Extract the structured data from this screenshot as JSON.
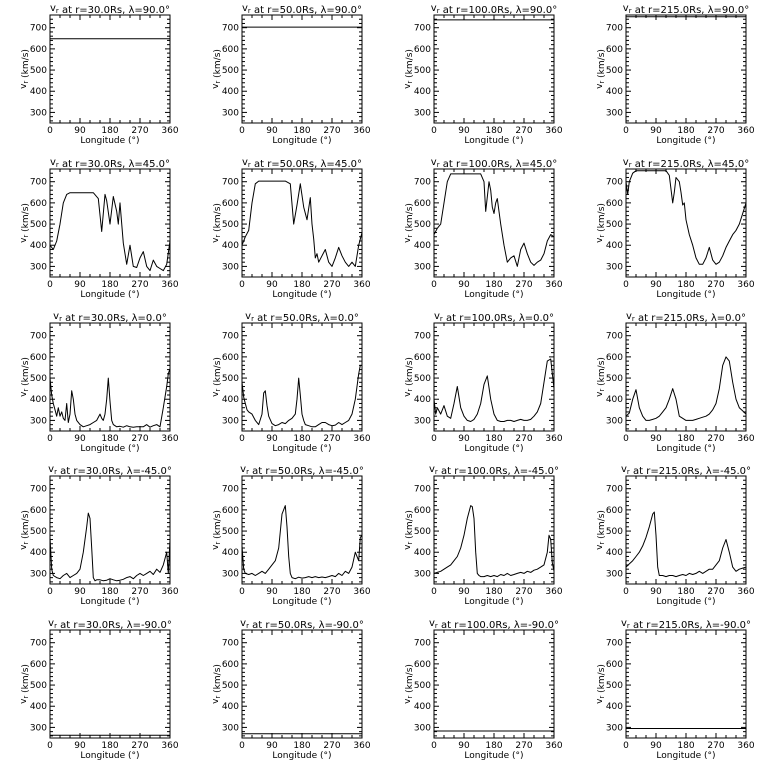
{
  "labels": {
    "xlabel": "Longitude  (°)",
    "ylabel": "v_r  (km/s)"
  },
  "axes": {
    "xlim": [
      0,
      360
    ],
    "ylim": [
      250,
      760
    ],
    "xticks": [
      0,
      90,
      180,
      270,
      360
    ],
    "yticks": [
      300,
      400,
      500,
      600,
      700
    ]
  },
  "chart_data": [
    {
      "type": "line",
      "title": "v_r at r=30.0Rs,  λ=90.0°",
      "x": [
        0,
        360
      ],
      "y": [
        648,
        648
      ]
    },
    {
      "type": "line",
      "title": "v_r at r=50.0Rs,  λ=90.0°",
      "x": [
        0,
        360
      ],
      "y": [
        703,
        703
      ]
    },
    {
      "type": "line",
      "title": "v_r at r=100.0Rs,  λ=90.0°",
      "x": [
        0,
        360
      ],
      "y": [
        737,
        737
      ]
    },
    {
      "type": "line",
      "title": "v_r at r=215.0Rs,  λ=90.0°",
      "x": [
        0,
        360
      ],
      "y": [
        752,
        752
      ]
    },
    {
      "type": "line",
      "title": "v_r at r=30.0Rs,  λ=45.0°",
      "x": [
        0,
        10,
        20,
        30,
        40,
        50,
        60,
        80,
        100,
        130,
        145,
        155,
        165,
        170,
        180,
        190,
        200,
        205,
        210,
        220,
        230,
        240,
        250,
        260,
        270,
        280,
        290,
        300,
        310,
        320,
        330,
        340,
        350,
        360
      ],
      "y": [
        400,
        380,
        420,
        500,
        600,
        640,
        648,
        648,
        648,
        648,
        620,
        465,
        640,
        610,
        500,
        630,
        560,
        500,
        600,
        410,
        310,
        400,
        300,
        295,
        340,
        370,
        300,
        280,
        330,
        300,
        290,
        280,
        310,
        420
      ]
    },
    {
      "type": "line",
      "title": "v_r at r=50.0Rs,  λ=45.0°",
      "x": [
        0,
        10,
        20,
        30,
        40,
        50,
        60,
        80,
        100,
        130,
        145,
        155,
        165,
        175,
        185,
        195,
        205,
        210,
        215,
        220,
        225,
        230,
        240,
        250,
        260,
        270,
        280,
        290,
        300,
        310,
        320,
        330,
        340,
        350,
        360
      ],
      "y": [
        400,
        440,
        470,
        600,
        690,
        703,
        703,
        703,
        703,
        703,
        690,
        500,
        590,
        690,
        580,
        520,
        625,
        500,
        430,
        340,
        360,
        320,
        350,
        380,
        320,
        300,
        340,
        390,
        350,
        320,
        300,
        320,
        300,
        400,
        460
      ]
    },
    {
      "type": "line",
      "title": "v_r at r=100.0Rs,  λ=45.0°",
      "x": [
        0,
        10,
        20,
        30,
        40,
        50,
        60,
        80,
        100,
        120,
        140,
        150,
        155,
        165,
        170,
        175,
        180,
        185,
        190,
        195,
        200,
        210,
        220,
        230,
        240,
        250,
        260,
        270,
        280,
        290,
        300,
        310,
        320,
        330,
        340,
        350,
        360
      ],
      "y": [
        450,
        480,
        500,
        600,
        700,
        737,
        737,
        737,
        737,
        737,
        737,
        700,
        560,
        700,
        660,
        580,
        550,
        600,
        620,
        560,
        500,
        400,
        320,
        340,
        350,
        300,
        380,
        410,
        360,
        320,
        305,
        320,
        330,
        360,
        420,
        450,
        440
      ]
    },
    {
      "type": "line",
      "title": "v_r at r=215.0Rs,  λ=45.0°",
      "x": [
        0,
        5,
        10,
        20,
        30,
        40,
        60,
        80,
        100,
        120,
        130,
        140,
        145,
        150,
        160,
        165,
        170,
        175,
        180,
        190,
        200,
        210,
        220,
        230,
        240,
        250,
        260,
        270,
        280,
        290,
        300,
        310,
        320,
        330,
        340,
        350,
        360
      ],
      "y": [
        700,
        640,
        700,
        740,
        752,
        752,
        752,
        752,
        752,
        752,
        730,
        600,
        650,
        720,
        700,
        650,
        590,
        600,
        520,
        450,
        400,
        340,
        310,
        310,
        340,
        390,
        330,
        310,
        320,
        350,
        390,
        420,
        450,
        470,
        500,
        550,
        600
      ]
    },
    {
      "type": "line",
      "title": "v_r at r=30.0Rs,  λ=0.0°",
      "x": [
        0,
        5,
        10,
        15,
        20,
        25,
        30,
        35,
        40,
        45,
        50,
        55,
        60,
        65,
        70,
        75,
        80,
        90,
        100,
        110,
        120,
        130,
        140,
        150,
        155,
        160,
        165,
        170,
        175,
        180,
        185,
        190,
        195,
        200,
        210,
        220,
        230,
        240,
        250,
        260,
        270,
        280,
        290,
        300,
        310,
        320,
        330,
        340,
        350,
        355,
        360
      ],
      "y": [
        500,
        420,
        380,
        350,
        320,
        360,
        320,
        340,
        310,
        300,
        380,
        290,
        330,
        440,
        400,
        330,
        300,
        280,
        270,
        275,
        280,
        290,
        300,
        330,
        310,
        300,
        330,
        400,
        500,
        390,
        300,
        280,
        275,
        270,
        272,
        268,
        275,
        270,
        268,
        270,
        270,
        270,
        280,
        268,
        275,
        280,
        270,
        360,
        460,
        520,
        545
      ]
    },
    {
      "type": "line",
      "title": "v_r at r=50.0Rs,  λ=0.0°",
      "x": [
        0,
        5,
        10,
        15,
        20,
        30,
        40,
        50,
        60,
        65,
        70,
        75,
        80,
        90,
        100,
        110,
        120,
        130,
        140,
        150,
        160,
        165,
        170,
        175,
        180,
        185,
        190,
        200,
        210,
        220,
        230,
        240,
        250,
        260,
        270,
        280,
        290,
        300,
        310,
        320,
        330,
        340,
        350,
        355,
        360
      ],
      "y": [
        480,
        410,
        380,
        350,
        340,
        330,
        300,
        280,
        330,
        430,
        440,
        370,
        320,
        285,
        275,
        280,
        290,
        285,
        300,
        310,
        330,
        400,
        500,
        420,
        330,
        300,
        280,
        275,
        270,
        270,
        280,
        290,
        290,
        280,
        275,
        278,
        290,
        280,
        290,
        300,
        330,
        400,
        520,
        560,
        560
      ]
    },
    {
      "type": "line",
      "title": "v_r at r=100.0Rs,  λ=0.0°",
      "x": [
        0,
        5,
        10,
        20,
        30,
        40,
        50,
        60,
        70,
        80,
        90,
        100,
        110,
        120,
        130,
        140,
        150,
        160,
        170,
        180,
        190,
        200,
        210,
        220,
        230,
        240,
        250,
        260,
        270,
        280,
        290,
        300,
        310,
        320,
        330,
        340,
        350,
        360
      ],
      "y": [
        400,
        330,
        360,
        330,
        370,
        320,
        310,
        380,
        460,
        360,
        320,
        300,
        295,
        305,
        330,
        380,
        470,
        510,
        400,
        330,
        300,
        295,
        295,
        300,
        300,
        295,
        300,
        305,
        300,
        300,
        305,
        320,
        340,
        380,
        480,
        580,
        590,
        450
      ]
    },
    {
      "type": "line",
      "title": "v_r at r=215.0Rs,  λ=0.0°",
      "x": [
        0,
        10,
        20,
        30,
        40,
        50,
        60,
        70,
        80,
        90,
        100,
        110,
        120,
        130,
        140,
        150,
        160,
        170,
        180,
        190,
        200,
        210,
        220,
        230,
        240,
        250,
        260,
        270,
        280,
        290,
        300,
        310,
        320,
        330,
        340,
        350,
        360
      ],
      "y": [
        320,
        335,
        400,
        445,
        360,
        320,
        300,
        300,
        305,
        310,
        320,
        340,
        360,
        400,
        450,
        400,
        320,
        310,
        300,
        300,
        300,
        305,
        310,
        315,
        320,
        330,
        350,
        380,
        450,
        560,
        600,
        580,
        480,
        400,
        360,
        345,
        330
      ]
    },
    {
      "type": "line",
      "title": "v_r at r=30.0Rs,  λ=-45.0°",
      "x": [
        0,
        5,
        10,
        20,
        30,
        40,
        50,
        60,
        70,
        80,
        90,
        100,
        110,
        115,
        120,
        125,
        130,
        135,
        140,
        150,
        160,
        170,
        180,
        190,
        200,
        210,
        220,
        230,
        240,
        250,
        260,
        270,
        280,
        290,
        300,
        310,
        320,
        330,
        340,
        350,
        355,
        360
      ],
      "y": [
        470,
        320,
        290,
        280,
        275,
        290,
        300,
        280,
        290,
        300,
        320,
        400,
        520,
        585,
        560,
        420,
        280,
        265,
        270,
        270,
        265,
        268,
        275,
        270,
        265,
        268,
        272,
        280,
        285,
        275,
        290,
        300,
        290,
        300,
        310,
        295,
        320,
        305,
        340,
        400,
        300,
        460
      ]
    },
    {
      "type": "line",
      "title": "v_r at r=50.0Rs,  λ=-45.0°",
      "x": [
        0,
        5,
        10,
        20,
        30,
        40,
        50,
        60,
        70,
        80,
        90,
        100,
        110,
        120,
        130,
        135,
        140,
        145,
        150,
        160,
        170,
        180,
        190,
        200,
        210,
        220,
        230,
        240,
        250,
        260,
        270,
        280,
        290,
        300,
        310,
        320,
        330,
        340,
        350,
        355,
        360
      ],
      "y": [
        430,
        320,
        300,
        295,
        300,
        290,
        300,
        310,
        300,
        320,
        340,
        360,
        420,
        580,
        620,
        520,
        380,
        300,
        280,
        275,
        282,
        278,
        280,
        285,
        280,
        285,
        280,
        283,
        280,
        285,
        290,
        285,
        300,
        290,
        310,
        300,
        330,
        400,
        360,
        470,
        480
      ]
    },
    {
      "type": "line",
      "title": "v_r at r=100.0Rs,  λ=-45.0°",
      "x": [
        0,
        10,
        20,
        30,
        40,
        50,
        60,
        70,
        80,
        90,
        100,
        110,
        115,
        120,
        125,
        130,
        135,
        140,
        150,
        160,
        170,
        180,
        190,
        200,
        210,
        220,
        230,
        240,
        250,
        260,
        270,
        280,
        290,
        300,
        310,
        320,
        330,
        340,
        345,
        350,
        355,
        360
      ],
      "y": [
        300,
        305,
        310,
        320,
        330,
        340,
        360,
        380,
        420,
        480,
        560,
        620,
        615,
        560,
        400,
        300,
        290,
        285,
        285,
        290,
        285,
        290,
        285,
        295,
        290,
        300,
        290,
        295,
        300,
        305,
        300,
        310,
        305,
        315,
        320,
        330,
        340,
        400,
        480,
        460,
        350,
        310
      ]
    },
    {
      "type": "line",
      "title": "v_r at r=215.0Rs,  λ=-45.0°",
      "x": [
        0,
        10,
        20,
        30,
        40,
        50,
        60,
        70,
        80,
        85,
        90,
        95,
        100,
        110,
        120,
        130,
        140,
        150,
        160,
        170,
        180,
        190,
        200,
        210,
        220,
        230,
        240,
        250,
        260,
        270,
        280,
        290,
        300,
        310,
        320,
        330,
        340,
        350,
        360
      ],
      "y": [
        330,
        345,
        360,
        380,
        400,
        430,
        470,
        520,
        580,
        590,
        480,
        330,
        290,
        290,
        285,
        290,
        290,
        285,
        290,
        295,
        290,
        300,
        295,
        300,
        310,
        300,
        310,
        320,
        320,
        340,
        360,
        420,
        460,
        400,
        330,
        310,
        320,
        325,
        330
      ]
    },
    {
      "type": "line",
      "title": "v_r at r=30.0Rs,  λ=-90.0°",
      "x": [
        0,
        360
      ],
      "y": [
        263,
        263
      ]
    },
    {
      "type": "line",
      "title": "v_r at r=50.0Rs,  λ=-90.0°",
      "x": [
        0,
        360
      ],
      "y": [
        270,
        270
      ]
    },
    {
      "type": "line",
      "title": "v_r at r=100.0Rs,  λ=-90.0°",
      "x": [
        0,
        360
      ],
      "y": [
        283,
        283
      ]
    },
    {
      "type": "line",
      "title": "v_r at r=215.0Rs,  λ=-90.0°",
      "x": [
        0,
        360
      ],
      "y": [
        295,
        295
      ]
    }
  ]
}
